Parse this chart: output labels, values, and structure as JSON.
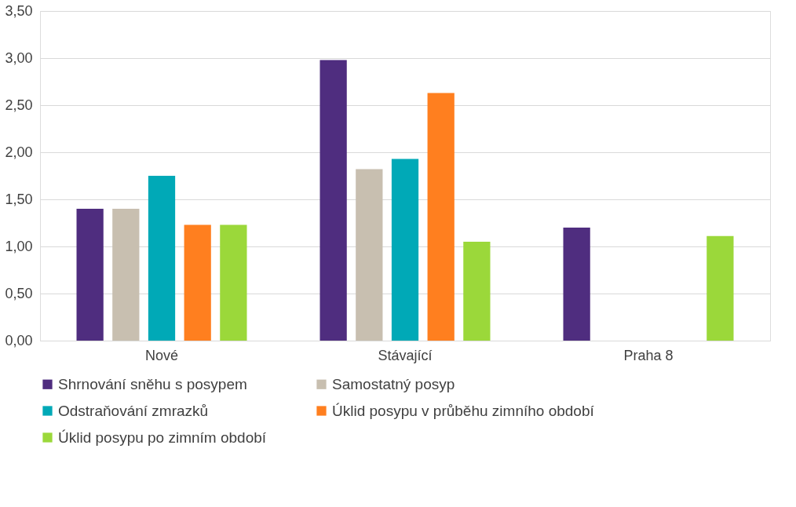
{
  "chart_data": {
    "type": "bar",
    "categories": [
      "Nové",
      "Stávající",
      "Praha 8"
    ],
    "series": [
      {
        "name": "Shrnování sněhu s posypem",
        "color": "#4f2d7f",
        "values": [
          1.4,
          2.98,
          1.2
        ]
      },
      {
        "name": "Samostatný posyp",
        "color": "#c8bfb0",
        "values": [
          1.4,
          1.82,
          null
        ]
      },
      {
        "name": "Odstraňování zmrazků",
        "color": "#00a9b7",
        "values": [
          1.75,
          1.93,
          null
        ]
      },
      {
        "name": "Úklid posypu v průběhu zimního období",
        "color": "#ff7f1f",
        "values": [
          1.23,
          2.63,
          null
        ]
      },
      {
        "name": "Úklid posypu po zimním období",
        "color": "#9bd83a",
        "values": [
          1.23,
          1.05,
          1.11
        ]
      }
    ],
    "ylim": [
      0,
      3.5
    ],
    "yticks": [
      {
        "value": 0,
        "label": "0,00"
      },
      {
        "value": 0.5,
        "label": "0,50"
      },
      {
        "value": 1,
        "label": "1,00"
      },
      {
        "value": 1.5,
        "label": "1,50"
      },
      {
        "value": 2,
        "label": "2,00"
      },
      {
        "value": 2.5,
        "label": "2,50"
      },
      {
        "value": 3,
        "label": "3,00"
      },
      {
        "value": 3.5,
        "label": "3,50"
      }
    ],
    "grid": "y",
    "legend": "bottom"
  }
}
